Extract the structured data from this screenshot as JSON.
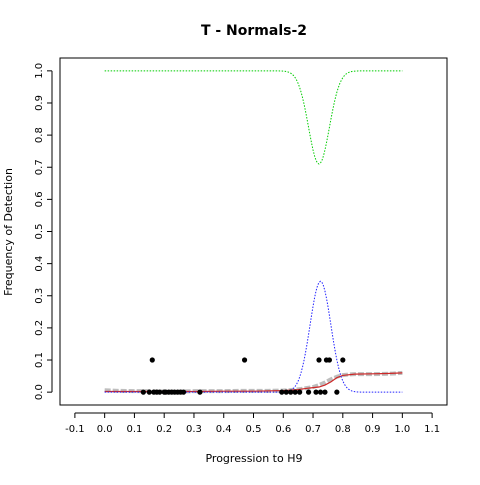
{
  "chart_data": {
    "type": "scatter",
    "title": "T - Normals-2",
    "xlabel": "Progression to H9",
    "ylabel": "Frequency of Detection",
    "xlim": [
      -0.15,
      1.15
    ],
    "ylim": [
      -0.04,
      1.04
    ],
    "x_ticks": [
      "-0.1",
      "0.0",
      "0.1",
      "0.2",
      "0.3",
      "0.4",
      "0.5",
      "0.6",
      "0.7",
      "0.8",
      "0.9",
      "1.0",
      "1.1"
    ],
    "y_ticks": [
      "0.0",
      "0.1",
      "0.2",
      "0.3",
      "0.4",
      "0.5",
      "0.6",
      "0.7",
      "0.8",
      "0.9",
      "1.0"
    ],
    "colors": {
      "points": "#000000",
      "smooth_gray": "#bebebe",
      "fit_red": "#cd2626",
      "green_curve": "#00cc00",
      "blue_curve": "#2020ff",
      "axes": "#000000"
    },
    "points": [
      {
        "x": 0.13,
        "y": 0.0
      },
      {
        "x": 0.15,
        "y": 0.0
      },
      {
        "x": 0.16,
        "y": 0.1
      },
      {
        "x": 0.165,
        "y": 0.0
      },
      {
        "x": 0.175,
        "y": 0.0
      },
      {
        "x": 0.185,
        "y": 0.0
      },
      {
        "x": 0.2,
        "y": 0.0
      },
      {
        "x": 0.205,
        "y": 0.0
      },
      {
        "x": 0.215,
        "y": 0.0
      },
      {
        "x": 0.225,
        "y": 0.0
      },
      {
        "x": 0.235,
        "y": 0.0
      },
      {
        "x": 0.245,
        "y": 0.0
      },
      {
        "x": 0.255,
        "y": 0.0
      },
      {
        "x": 0.265,
        "y": 0.0
      },
      {
        "x": 0.32,
        "y": 0.0
      },
      {
        "x": 0.47,
        "y": 0.1
      },
      {
        "x": 0.595,
        "y": 0.0
      },
      {
        "x": 0.61,
        "y": 0.0
      },
      {
        "x": 0.625,
        "y": 0.0
      },
      {
        "x": 0.64,
        "y": 0.0
      },
      {
        "x": 0.655,
        "y": 0.0
      },
      {
        "x": 0.685,
        "y": 0.0
      },
      {
        "x": 0.71,
        "y": 0.0
      },
      {
        "x": 0.725,
        "y": 0.0
      },
      {
        "x": 0.72,
        "y": 0.1
      },
      {
        "x": 0.74,
        "y": 0.0
      },
      {
        "x": 0.745,
        "y": 0.1
      },
      {
        "x": 0.755,
        "y": 0.1
      },
      {
        "x": 0.78,
        "y": 0.0
      },
      {
        "x": 0.8,
        "y": 0.1
      }
    ],
    "gray_smooth": [
      {
        "x": 0.0,
        "y": 0.006
      },
      {
        "x": 0.05,
        "y": 0.004
      },
      {
        "x": 0.1,
        "y": 0.003
      },
      {
        "x": 0.15,
        "y": 0.003
      },
      {
        "x": 0.2,
        "y": 0.002
      },
      {
        "x": 0.25,
        "y": 0.002
      },
      {
        "x": 0.3,
        "y": 0.003
      },
      {
        "x": 0.35,
        "y": 0.003
      },
      {
        "x": 0.4,
        "y": 0.003
      },
      {
        "x": 0.45,
        "y": 0.004
      },
      {
        "x": 0.5,
        "y": 0.004
      },
      {
        "x": 0.55,
        "y": 0.004
      },
      {
        "x": 0.6,
        "y": 0.005
      },
      {
        "x": 0.62,
        "y": 0.006
      },
      {
        "x": 0.64,
        "y": 0.008
      },
      {
        "x": 0.66,
        "y": 0.01
      },
      {
        "x": 0.68,
        "y": 0.013
      },
      {
        "x": 0.7,
        "y": 0.016
      },
      {
        "x": 0.72,
        "y": 0.022
      },
      {
        "x": 0.74,
        "y": 0.03
      },
      {
        "x": 0.76,
        "y": 0.04
      },
      {
        "x": 0.78,
        "y": 0.048
      },
      {
        "x": 0.8,
        "y": 0.053
      },
      {
        "x": 0.82,
        "y": 0.055
      },
      {
        "x": 0.84,
        "y": 0.056
      },
      {
        "x": 0.86,
        "y": 0.056
      },
      {
        "x": 0.9,
        "y": 0.056
      },
      {
        "x": 0.94,
        "y": 0.057
      },
      {
        "x": 0.97,
        "y": 0.058
      },
      {
        "x": 1.0,
        "y": 0.06
      }
    ],
    "red_fit": [
      {
        "x": 0.0,
        "y": 0.002
      },
      {
        "x": 0.1,
        "y": 0.002
      },
      {
        "x": 0.2,
        "y": 0.002
      },
      {
        "x": 0.3,
        "y": 0.002
      },
      {
        "x": 0.4,
        "y": 0.003
      },
      {
        "x": 0.5,
        "y": 0.003
      },
      {
        "x": 0.6,
        "y": 0.005
      },
      {
        "x": 0.65,
        "y": 0.008
      },
      {
        "x": 0.68,
        "y": 0.012
      },
      {
        "x": 0.7,
        "y": 0.014
      },
      {
        "x": 0.72,
        "y": 0.016
      },
      {
        "x": 0.74,
        "y": 0.022
      },
      {
        "x": 0.76,
        "y": 0.032
      },
      {
        "x": 0.78,
        "y": 0.045
      },
      {
        "x": 0.8,
        "y": 0.052
      },
      {
        "x": 0.84,
        "y": 0.056
      },
      {
        "x": 0.9,
        "y": 0.057
      },
      {
        "x": 0.95,
        "y": 0.058
      },
      {
        "x": 1.0,
        "y": 0.06
      }
    ],
    "green_dip": {
      "x_start": 0.0,
      "x_end": 1.0,
      "baseline": 1.0,
      "min": 0.71,
      "center": 0.72,
      "sd": 0.035
    },
    "blue_bump": {
      "x_start": 0.0,
      "x_end": 1.0,
      "baseline": 0.0,
      "peak": 0.345,
      "center": 0.725,
      "sd": 0.035
    }
  }
}
